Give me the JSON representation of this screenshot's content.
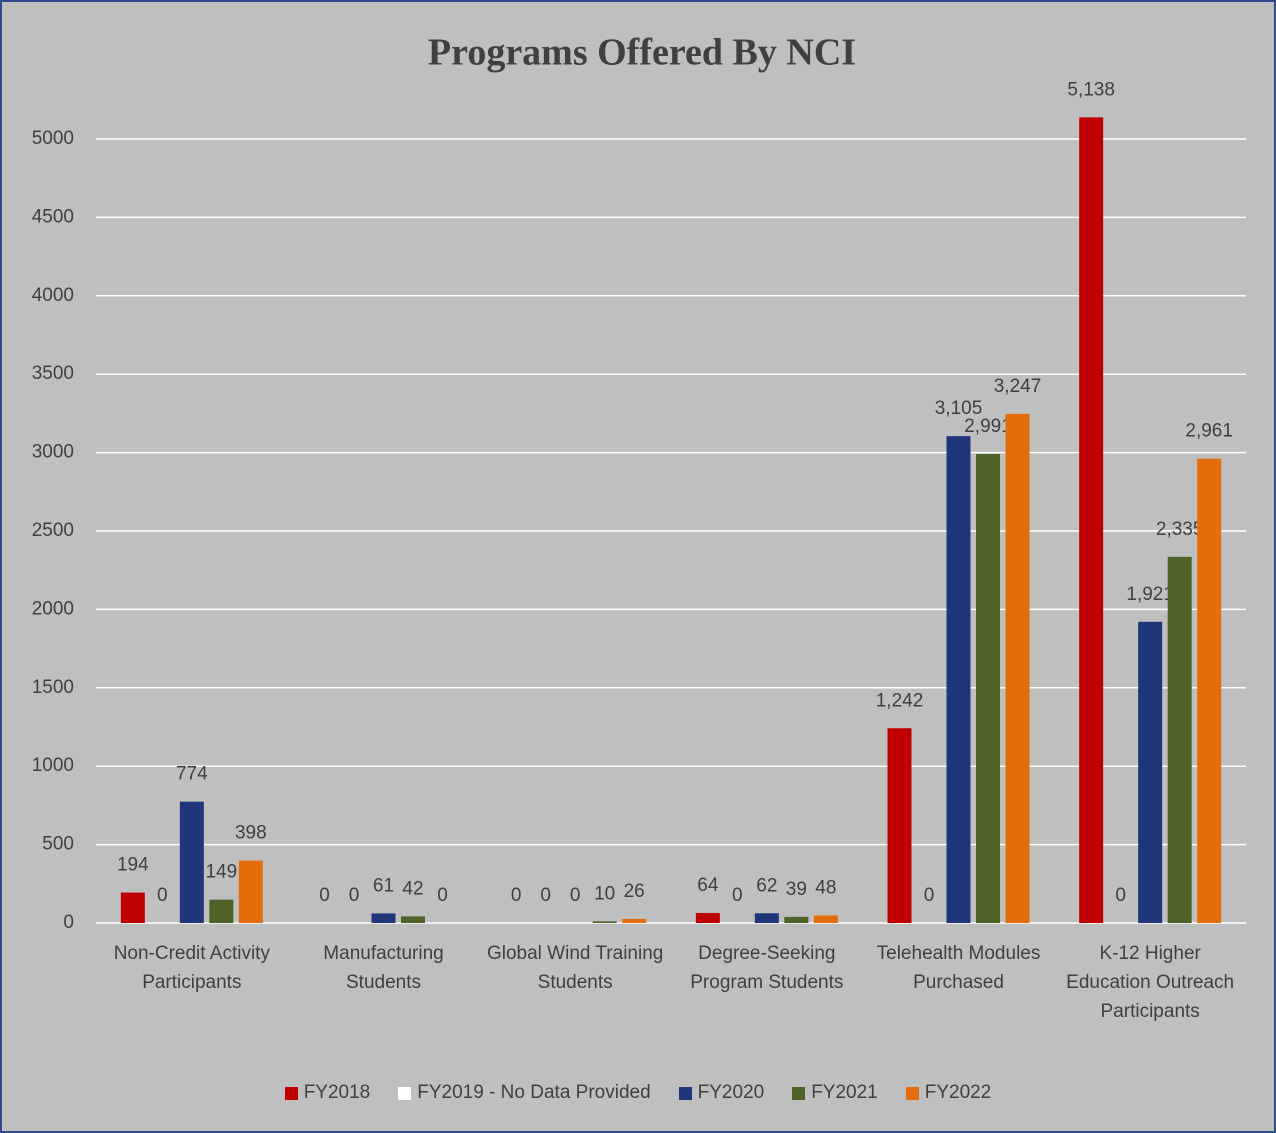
{
  "chart_data": {
    "type": "bar",
    "title": "Programs Offered By NCI",
    "categories": [
      "Non-Credit Activity Participants",
      "Manufacturing Students",
      "Global Wind Training Students",
      "Degree-Seeking Program Students",
      "Telehealth Modules Purchased",
      "K-12 Higher Education Outreach Participants"
    ],
    "series": [
      {
        "name": "FY2018",
        "color": "#c00000",
        "values": [
          194,
          0,
          0,
          64,
          1242,
          5138
        ],
        "value_labels": [
          "194",
          "0",
          "0",
          "64",
          "1,242",
          "5,138"
        ]
      },
      {
        "name": "FY2019 - No Data Provided",
        "color": "#ffffff",
        "values": [
          0,
          0,
          0,
          0,
          0,
          0
        ],
        "value_labels": [
          "0",
          "0",
          "0",
          "0",
          "0",
          "0"
        ]
      },
      {
        "name": "FY2020",
        "color": "#1f377a",
        "values": [
          774,
          61,
          0,
          62,
          3105,
          1921
        ],
        "value_labels": [
          "774",
          "61",
          "0",
          "62",
          "3,105",
          "1,921"
        ]
      },
      {
        "name": "FY2021",
        "color": "#4f6228",
        "values": [
          149,
          42,
          10,
          39,
          2991,
          2335
        ],
        "value_labels": [
          "149",
          "42",
          "10",
          "39",
          "2,991",
          "2,335"
        ]
      },
      {
        "name": "FY2022",
        "color": "#e46c0a",
        "values": [
          398,
          0,
          26,
          48,
          3247,
          2961
        ],
        "value_labels": [
          "398",
          "0",
          "26",
          "48",
          "3,247",
          "2,961"
        ]
      }
    ],
    "ylim": [
      0,
      5000
    ],
    "yticks": [
      0,
      500,
      1000,
      1500,
      2000,
      2500,
      3000,
      3500,
      4000,
      4500,
      5000
    ],
    "grid": true,
    "legend": "bottom"
  }
}
